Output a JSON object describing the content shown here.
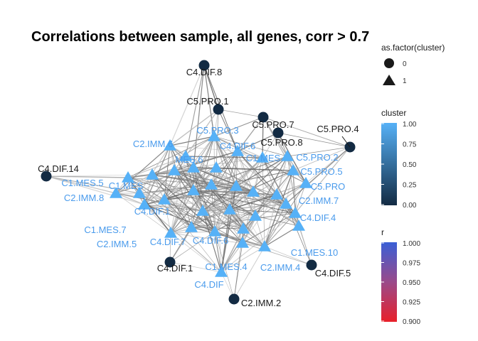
{
  "title": "Correlations between sample, all genes, corr > 0.7",
  "colors": {
    "cluster0": "#132b43",
    "cluster1": "#56b1f7",
    "label0": "#1a1a1a",
    "label1": "#4a9bec",
    "edge": "#7a7a7a"
  },
  "nodes": [
    {
      "id": "C4.DIF.8",
      "label": "C4.DIF.8",
      "cluster": 0
    },
    {
      "id": "C5.PRO.1",
      "label": "C5.PRO.1",
      "cluster": 0
    },
    {
      "id": "C5.PRO.7",
      "label": "C5.PRO.7",
      "cluster": 0
    },
    {
      "id": "C5.PRO.8",
      "label": "C5.PRO.8",
      "cluster": 0
    },
    {
      "id": "C5.PRO.4",
      "label": "C5.PRO.4",
      "cluster": 0
    },
    {
      "id": "C4.DIF.14",
      "label": "C4.DIF.14",
      "cluster": 0
    },
    {
      "id": "C4.DIF.1",
      "label": "C4.DIF.1",
      "cluster": 0
    },
    {
      "id": "C4.DIF.5",
      "label": "C4.DIF.5",
      "cluster": 0
    },
    {
      "id": "C2.IMM.2",
      "label": "C2.IMM.2",
      "cluster": 0
    },
    {
      "id": "C5.PRO.3",
      "label": "C5.PRO.3",
      "cluster": 1
    },
    {
      "id": "C2.IMM.6",
      "label": "C2.IMM.6",
      "cluster": 1
    },
    {
      "id": "C4.DIF.6",
      "label": "C4.DIF.6",
      "cluster": 1
    },
    {
      "id": "C1.MES",
      "label": "C1.MES",
      "cluster": 1
    },
    {
      "id": "C5.PRO.2",
      "label": "C5.PRO.2",
      "cluster": 1
    },
    {
      "id": "C1.MES.5",
      "label": "C1.MES.5",
      "cluster": 1
    },
    {
      "id": "C5.PRO.5",
      "label": "C5.PRO.5",
      "cluster": 1
    },
    {
      "id": "C2.IMM.8",
      "label": "C2.IMM.8",
      "cluster": 1
    },
    {
      "id": "C5.PRO",
      "label": "C5.PRO",
      "cluster": 1
    },
    {
      "id": "C2.IMM.7",
      "label": "C2.IMM.7",
      "cluster": 1
    },
    {
      "id": "C4.DIF.4",
      "label": "C4.DIF.4",
      "cluster": 1
    },
    {
      "id": "C1.MES.7",
      "label": "C1.MES.7",
      "cluster": 1
    },
    {
      "id": "C2.IMM.5",
      "label": "C2.IMM.5",
      "cluster": 1
    },
    {
      "id": "C4.DIF.7",
      "label": "C4.DIF.7",
      "cluster": 1
    },
    {
      "id": "C1.MES.10",
      "label": "C1.MES.10",
      "cluster": 1
    },
    {
      "id": "C1.MES.4",
      "label": "C1.MES.4",
      "cluster": 1
    },
    {
      "id": "C2.IMM.4",
      "label": "C2.IMM.4",
      "cluster": 1
    },
    {
      "id": "C4.DIF",
      "label": "C4.DIF",
      "cluster": 1
    },
    {
      "id": "MES.6",
      "label": "MES.6",
      "cluster": 1
    },
    {
      "id": "C1.MES.2",
      "label": "C1.MES",
      "cluster": 1
    },
    {
      "id": "C4.DIF.10",
      "label": "C4.DIF.1",
      "cluster": 1
    },
    {
      "id": "C4.DIF.0",
      "label": "C4.DIF.6",
      "cluster": 1
    },
    {
      "id": "X4",
      "label": "",
      "cluster": 1
    },
    {
      "id": "X5",
      "label": "",
      "cluster": 1
    },
    {
      "id": "X6",
      "label": "",
      "cluster": 1
    },
    {
      "id": "X7",
      "label": "",
      "cluster": 1
    },
    {
      "id": "X8",
      "label": "",
      "cluster": 1
    },
    {
      "id": "X9",
      "label": "",
      "cluster": 1
    },
    {
      "id": "X10",
      "label": "",
      "cluster": 1
    },
    {
      "id": "X11",
      "label": "",
      "cluster": 1
    },
    {
      "id": "X12",
      "label": "",
      "cluster": 1
    },
    {
      "id": "X13",
      "label": "",
      "cluster": 1
    },
    {
      "id": "X14",
      "label": "",
      "cluster": 1
    },
    {
      "id": "X15",
      "label": "",
      "cluster": 1
    },
    {
      "id": "X16",
      "label": "",
      "cluster": 1
    }
  ],
  "legend_shape": {
    "title": "as.factor(cluster)",
    "items": [
      {
        "shape": "circle",
        "label": "0"
      },
      {
        "shape": "triangle",
        "label": "1"
      }
    ]
  },
  "legend_cluster": {
    "title": "cluster",
    "ticks": [
      "1.00",
      "0.75",
      "0.50",
      "0.25",
      "0.00"
    ],
    "colors": [
      "#56b1f7",
      "#132b43"
    ]
  },
  "legend_r": {
    "title": "r",
    "ticks": [
      "1.000",
      "0.975",
      "0.950",
      "0.925",
      "0.900"
    ],
    "colors": [
      "#3a5fd6",
      "#e8202a"
    ]
  }
}
